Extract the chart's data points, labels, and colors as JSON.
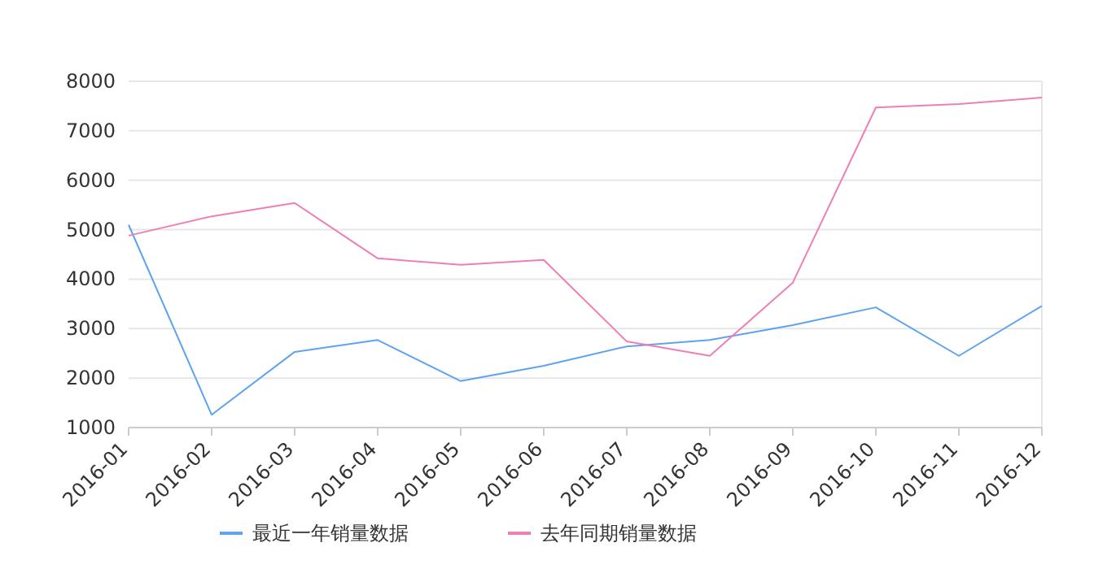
{
  "chart_data": {
    "type": "line",
    "categories": [
      "2016-01",
      "2016-02",
      "2016-03",
      "2016-04",
      "2016-05",
      "2016-06",
      "2016-07",
      "2016-08",
      "2016-09",
      "2016-10",
      "2016-11",
      "2016-12"
    ],
    "series": [
      {
        "name": "最近一年销量数据",
        "color": "#5fa3ee",
        "values": [
          5100,
          1260,
          2530,
          2770,
          1940,
          2250,
          2640,
          2770,
          3070,
          3430,
          2450,
          3460
        ]
      },
      {
        "name": "去年同期销量数据",
        "color": "#ee7fb6",
        "values": [
          4880,
          5270,
          5540,
          4420,
          4290,
          4390,
          2740,
          2450,
          3930,
          7470,
          7540,
          7670
        ]
      }
    ],
    "ylim": [
      1000,
      8000
    ],
    "yticks": [
      1000,
      2000,
      3000,
      4000,
      5000,
      6000,
      7000,
      8000
    ],
    "grid": "y",
    "legend": "bottom",
    "marker": "none",
    "line_style": "solid"
  }
}
